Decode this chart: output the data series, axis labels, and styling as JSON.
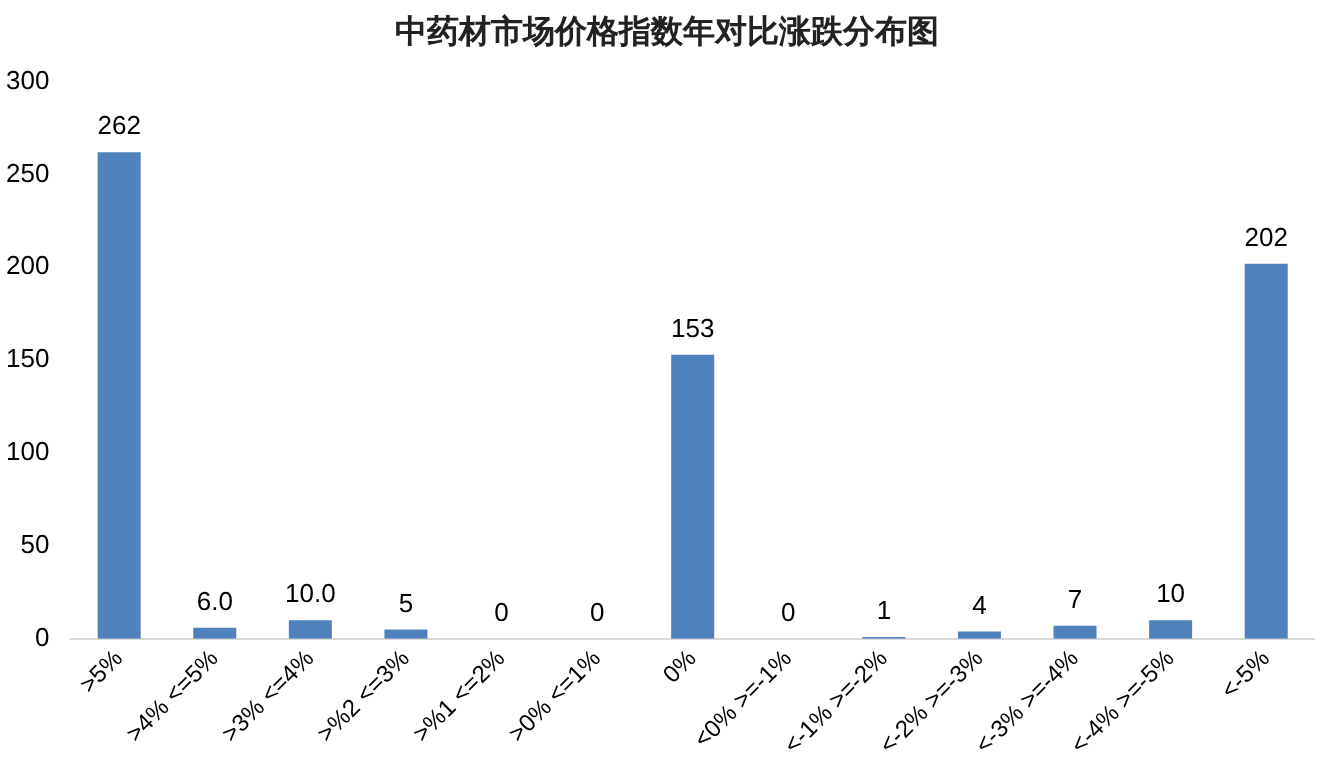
{
  "chart_data": {
    "type": "bar",
    "title": "中药材市场价格指数年对比涨跌分布图",
    "categories": [
      ">5%",
      ">4% <=5%",
      ">3% <=4%",
      ">%2 <=3%",
      ">%1 <=2%",
      ">0% <=1%",
      "0%",
      "<0% >=-1%",
      "<-1% >=-2%",
      "<-2% >=-3%",
      "<-3% >=-4%",
      "<-4% >=-5%",
      "<-5%"
    ],
    "values": [
      262,
      6,
      10,
      5,
      0,
      0,
      153,
      0,
      1,
      4,
      7,
      10,
      202
    ],
    "value_labels": [
      "262",
      "6.0",
      "10.0",
      "5",
      "0",
      "0",
      "153",
      "0",
      "1",
      "4",
      "7",
      "10",
      "202"
    ],
    "color": "#4f81bd",
    "ylim": [
      0,
      300
    ],
    "yticks": [
      0,
      50,
      100,
      150,
      200,
      250,
      300
    ],
    "grid": false,
    "legend": false
  }
}
